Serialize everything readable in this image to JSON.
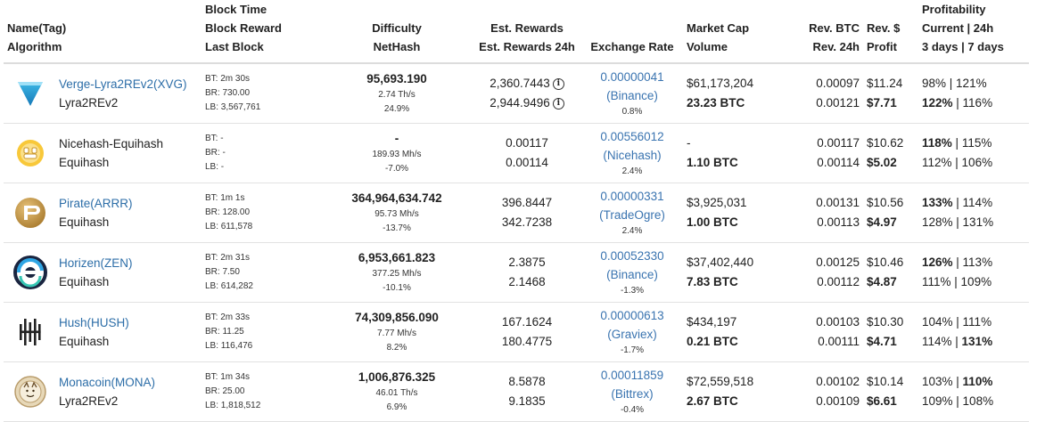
{
  "headers": {
    "name": [
      "Name(Tag)",
      "Algorithm"
    ],
    "block": [
      "Block Time",
      "Block Reward",
      "Last Block"
    ],
    "difficulty": [
      "Difficulty",
      "NetHash"
    ],
    "rewards": [
      "Est. Rewards",
      "Est. Rewards 24h"
    ],
    "exchange": [
      "Exchange Rate"
    ],
    "market": [
      "Market Cap",
      "Volume"
    ],
    "revbtc": [
      "Rev. BTC",
      "Rev. 24h"
    ],
    "revusd": [
      "Rev. $",
      "Profit"
    ],
    "profit": [
      "Profitability",
      "Current | 24h",
      "3 days | 7 days"
    ]
  },
  "rows": [
    {
      "name": "Verge-Lyra2REv2(XVG)",
      "name_link": true,
      "algo": "Lyra2REv2",
      "logo": "verge-logo-icon",
      "bt": "BT: 2m 30s",
      "br": "BR: 730.00",
      "lb": "LB: 3,567,761",
      "diff": "95,693.190",
      "nethash": "2.74 Th/s",
      "diff_change": "24.9%",
      "est": "2,360.7443",
      "est24": "2,944.9496",
      "rate": "0.00000041",
      "exchange": "(Binance)",
      "rate_change": "0.8%",
      "mcap": "$61,173,204",
      "volume": "23.23 BTC",
      "revbtc": "0.00097",
      "rev24": "0.00121",
      "revusd": "$11.24",
      "profit": "$7.71",
      "cur": "98%",
      "h24": "121%",
      "d3": "122%",
      "d7": "116%"
    },
    {
      "name": "Nicehash-Equihash",
      "name_link": false,
      "algo": "Equihash",
      "logo": "nicehash-logo-icon",
      "bt": "BT: -",
      "br": "BR: -",
      "lb": "LB: -",
      "diff": "-",
      "nethash": "189.93 Mh/s",
      "diff_change": "-7.0%",
      "est": "0.00117",
      "est24": "0.00114",
      "rate": "0.00556012",
      "exchange": "(Nicehash)",
      "rate_change": "2.4%",
      "mcap": "-",
      "volume": "1.10 BTC",
      "revbtc": "0.00117",
      "rev24": "0.00114",
      "revusd": "$10.62",
      "profit": "$5.02",
      "cur": "118%",
      "h24": "115%",
      "d3": "112%",
      "d7": "106%"
    },
    {
      "name": "Pirate(ARRR)",
      "name_link": true,
      "algo": "Equihash",
      "logo": "pirate-logo-icon",
      "bt": "BT: 1m 1s",
      "br": "BR: 128.00",
      "lb": "LB: 611,578",
      "diff": "364,964,634.742",
      "nethash": "95.73 Mh/s",
      "diff_change": "-13.7%",
      "est": "396.8447",
      "est24": "342.7238",
      "rate": "0.00000331",
      "exchange": "(TradeOgre)",
      "rate_change": "2.4%",
      "mcap": "$3,925,031",
      "volume": "1.00 BTC",
      "revbtc": "0.00131",
      "rev24": "0.00113",
      "revusd": "$10.56",
      "profit": "$4.97",
      "cur": "133%",
      "h24": "114%",
      "d3": "128%",
      "d7": "131%"
    },
    {
      "name": "Horizen(ZEN)",
      "name_link": true,
      "algo": "Equihash",
      "logo": "horizen-logo-icon",
      "bt": "BT: 2m 31s",
      "br": "BR: 7.50",
      "lb": "LB: 614,282",
      "diff": "6,953,661.823",
      "nethash": "377.25 Mh/s",
      "diff_change": "-10.1%",
      "est": "2.3875",
      "est24": "2.1468",
      "rate": "0.00052330",
      "exchange": "(Binance)",
      "rate_change": "-1.3%",
      "mcap": "$37,402,440",
      "volume": "7.83 BTC",
      "revbtc": "0.00125",
      "rev24": "0.00112",
      "revusd": "$10.46",
      "profit": "$4.87",
      "cur": "126%",
      "h24": "113%",
      "d3": "111%",
      "d7": "109%"
    },
    {
      "name": "Hush(HUSH)",
      "name_link": true,
      "algo": "Equihash",
      "logo": "hush-logo-icon",
      "bt": "BT: 2m 33s",
      "br": "BR: 11.25",
      "lb": "LB: 116,476",
      "diff": "74,309,856.090",
      "nethash": "7.77 Mh/s",
      "diff_change": "8.2%",
      "est": "167.1624",
      "est24": "180.4775",
      "rate": "0.00000613",
      "exchange": "(Graviex)",
      "rate_change": "-1.7%",
      "mcap": "$434,197",
      "volume": "0.21 BTC",
      "revbtc": "0.00103",
      "rev24": "0.00111",
      "revusd": "$10.30",
      "profit": "$4.71",
      "cur": "104%",
      "h24": "111%",
      "d3": "114%",
      "d7": "131%"
    },
    {
      "name": "Monacoin(MONA)",
      "name_link": true,
      "algo": "Lyra2REv2",
      "logo": "monacoin-logo-icon",
      "bt": "BT: 1m 34s",
      "br": "BR: 25.00",
      "lb": "LB: 1,818,512",
      "diff": "1,006,876.325",
      "nethash": "46.01 Th/s",
      "diff_change": "6.9%",
      "est": "8.5878",
      "est24": "9.1835",
      "rate": "0.00011859",
      "exchange": "(Bittrex)",
      "rate_change": "-0.4%",
      "mcap": "$72,559,518",
      "volume": "2.67 BTC",
      "revbtc": "0.00102",
      "rev24": "0.00109",
      "revusd": "$10.14",
      "profit": "$6.61",
      "cur": "103%",
      "h24": "110%",
      "d3": "109%",
      "d7": "108%"
    }
  ],
  "bold_profit": [
    [
      "d3"
    ],
    [
      "cur"
    ],
    [
      "cur"
    ],
    [
      "cur"
    ],
    [
      "d7"
    ],
    [
      "h24"
    ]
  ],
  "info_icon": "info-circle-icon"
}
